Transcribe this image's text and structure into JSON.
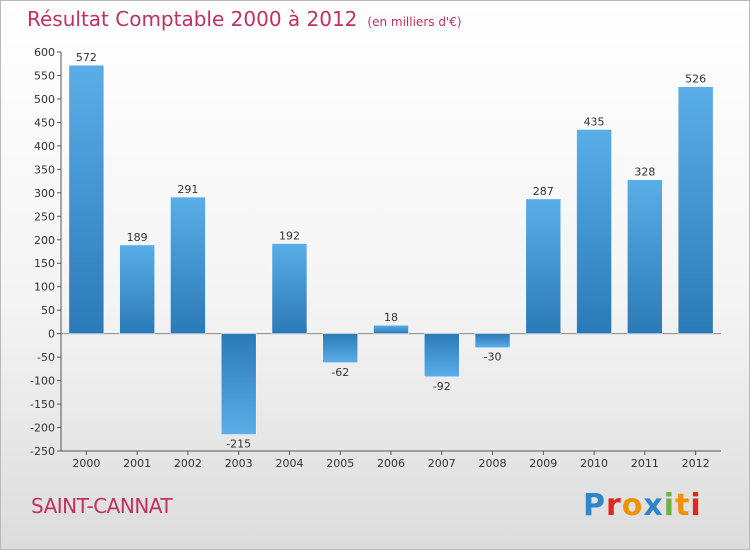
{
  "title": {
    "main": "Résultat Comptable 2000 à 2012",
    "unit": "(en milliers d'€)"
  },
  "city": "SAINT-CANNAT",
  "logo": {
    "text": "Proxiti"
  },
  "colors": {
    "title": "#c0315e",
    "bar_light": "#5aaee8",
    "bar_dark": "#2a7ab8",
    "logo": [
      "#2e86c9",
      "#e1261c",
      "#f29100",
      "#2e86c9",
      "#6db33f",
      "#f29100",
      "#e1261c"
    ]
  },
  "chart_data": {
    "type": "bar",
    "categories": [
      "2000",
      "2001",
      "2002",
      "2003",
      "2004",
      "2005",
      "2006",
      "2007",
      "2008",
      "2009",
      "2010",
      "2011",
      "2012"
    ],
    "values": [
      572,
      189,
      291,
      -215,
      192,
      -62,
      18,
      -92,
      -30,
      287,
      435,
      328,
      526
    ],
    "ylim": [
      -250,
      600
    ],
    "yticks": [
      600,
      550,
      500,
      450,
      400,
      350,
      300,
      250,
      200,
      150,
      100,
      50,
      0,
      -50,
      -100,
      -150,
      -200,
      -250
    ],
    "grid": false
  }
}
